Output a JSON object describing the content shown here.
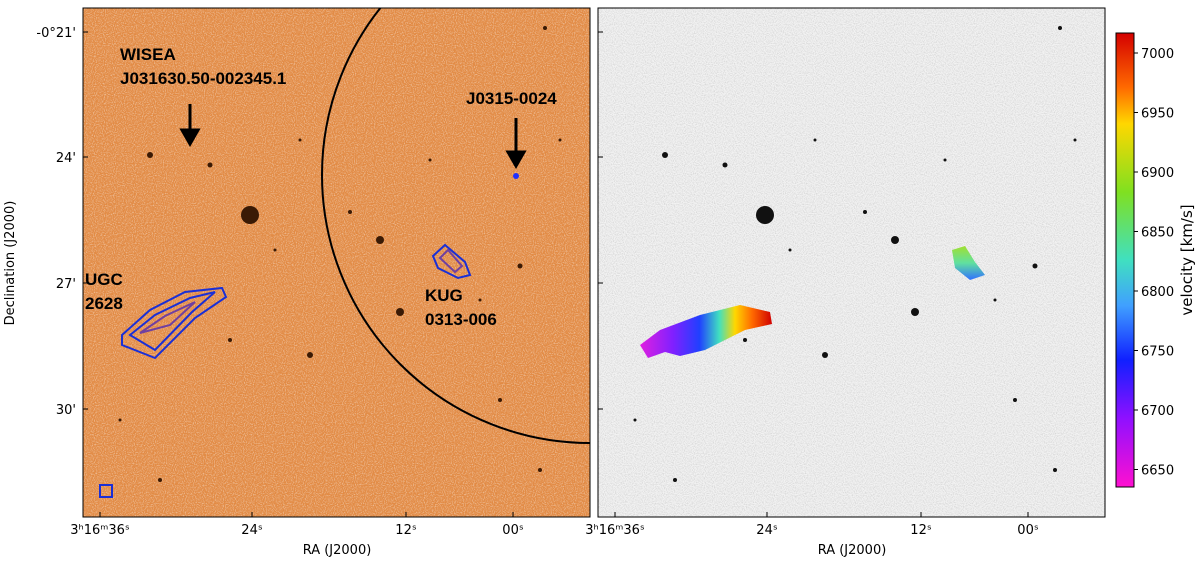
{
  "y_axis": {
    "label": "Declination (J2000)",
    "ticks": [
      "-0°21'",
      "24'",
      "27'",
      "30'"
    ]
  },
  "left_panel": {
    "x_label": "RA (J2000)",
    "x_ticks": [
      "3ʰ16ᵐ36ˢ",
      "24ˢ",
      "12ˢ",
      "00ˢ"
    ],
    "annotations": {
      "wisea_1": "WISEA",
      "wisea_2": "J031630.50-002345.1",
      "j0315": "J0315-0024",
      "ugc_1": "UGC",
      "ugc_2": "2628",
      "kug_1": "KUG",
      "kug_2": "0313-006"
    }
  },
  "right_panel": {
    "x_label": "RA (J2000)",
    "x_ticks": [
      "3ʰ16ᵐ36ˢ",
      "24ˢ",
      "12ˢ",
      "00ˢ"
    ]
  },
  "colorbar": {
    "label": "velocity [km/s]",
    "ticks": [
      7000,
      6950,
      6900,
      6850,
      6800,
      6750,
      6700,
      6650
    ]
  }
}
